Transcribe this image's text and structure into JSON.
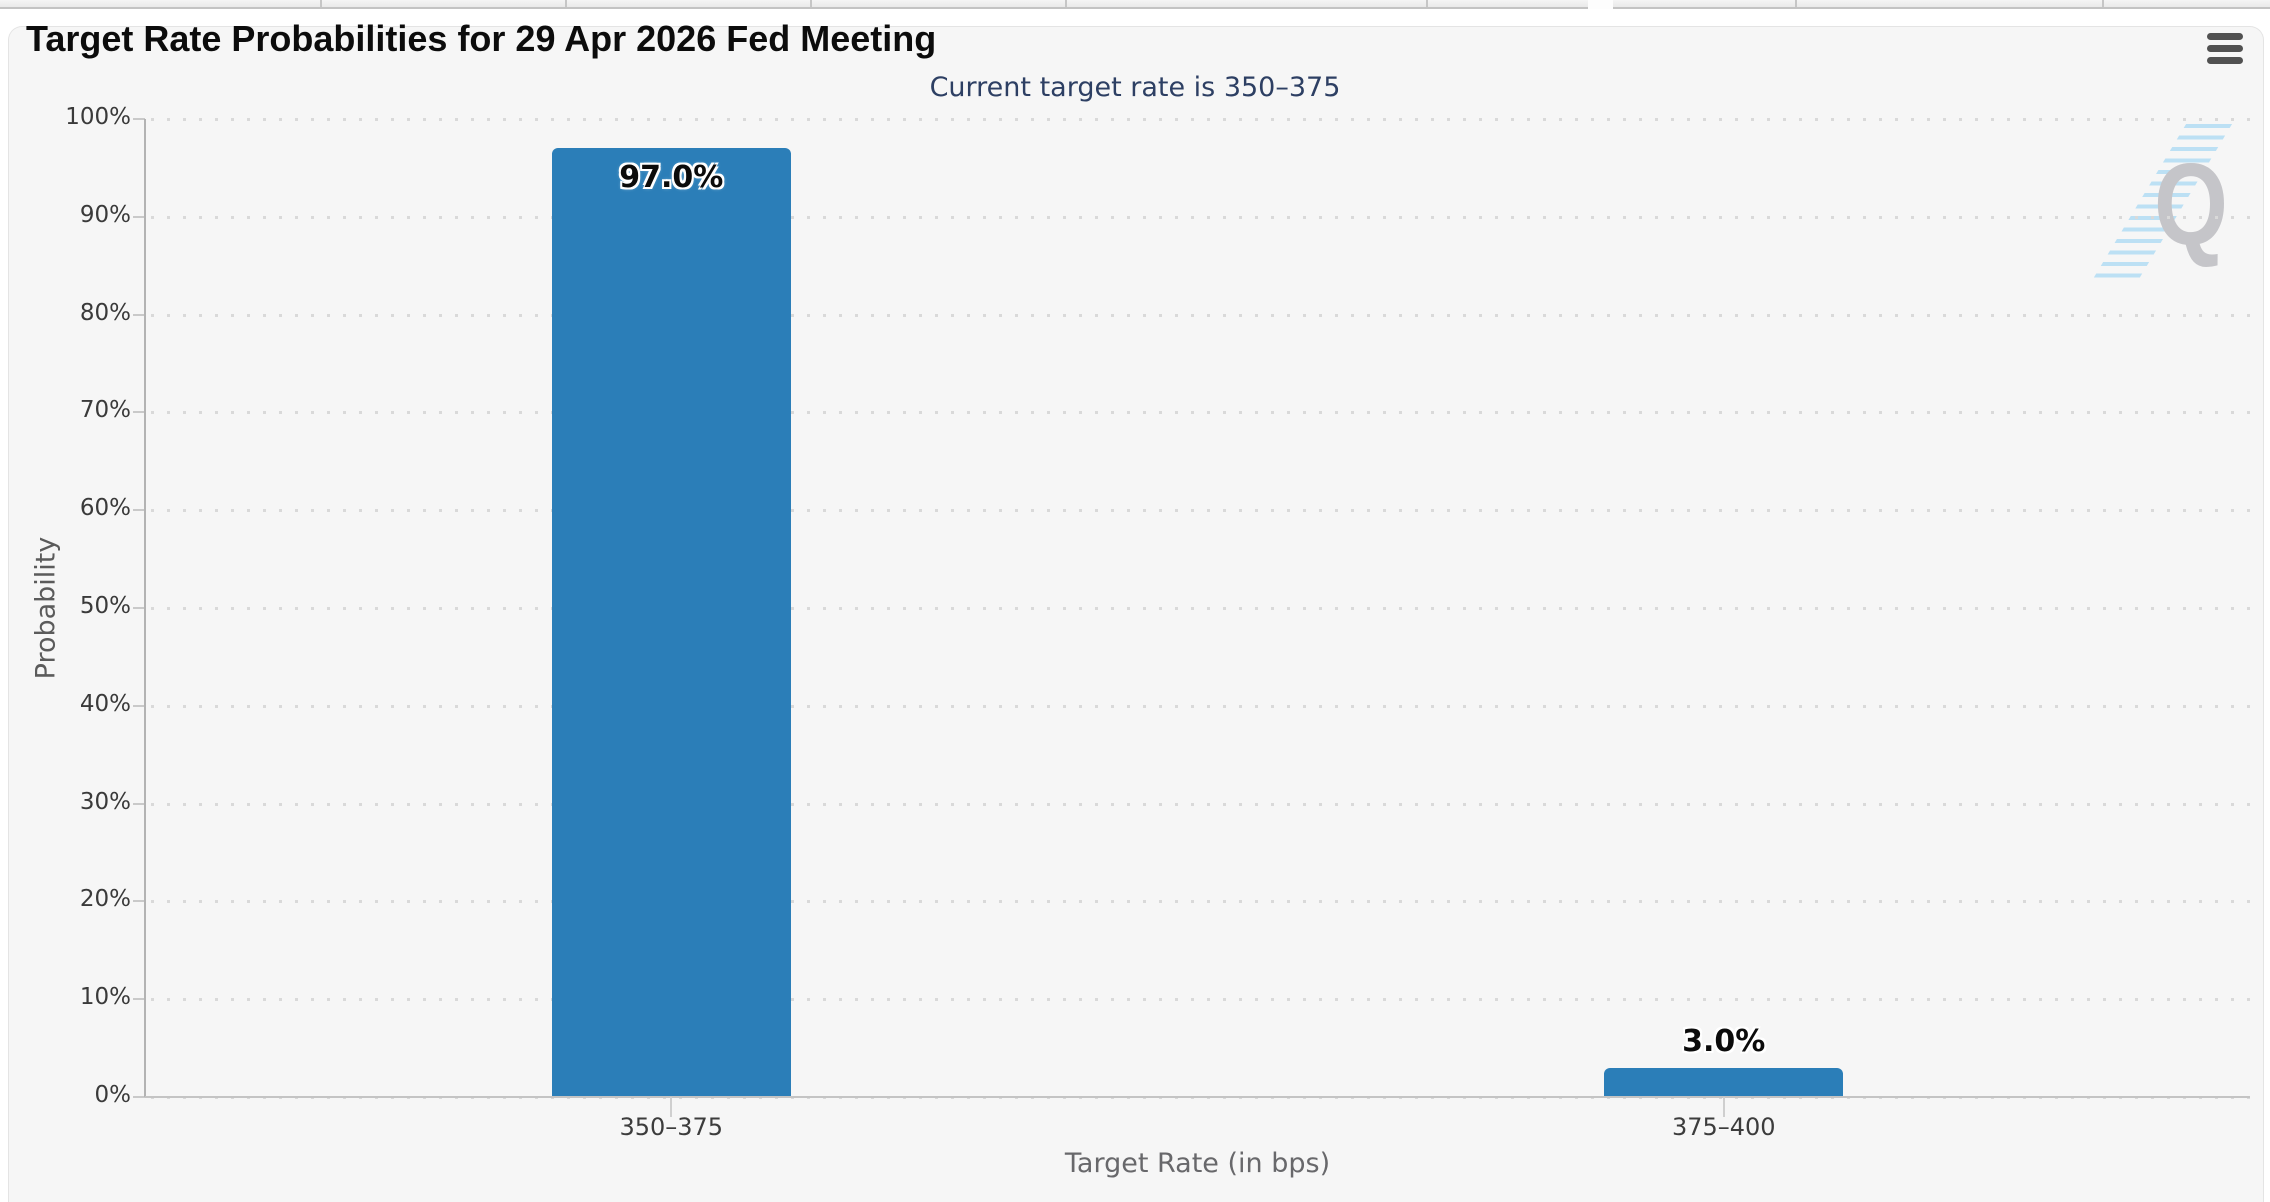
{
  "header": {
    "menu_icon": "hamburger-menu"
  },
  "watermark": {
    "letter": "Q",
    "description": "quikstrike-logo-watermark"
  },
  "chart_data": {
    "type": "bar",
    "title": "Target Rate Probabilities for 29 Apr 2026 Fed Meeting",
    "subtitle": "Current target rate is 350–375",
    "categories": [
      "350–375",
      "375–400"
    ],
    "values": [
      97.0,
      3.0
    ],
    "value_labels": [
      "97.0%",
      "3.0%"
    ],
    "xlabel": "Target Rate (in bps)",
    "ylabel": "Probability",
    "ylim": [
      0,
      100
    ],
    "yticks": [
      0,
      10,
      20,
      30,
      40,
      50,
      60,
      70,
      80,
      90,
      100
    ],
    "ytick_labels": [
      "0%",
      "10%",
      "20%",
      "30%",
      "40%",
      "50%",
      "60%",
      "70%",
      "80%",
      "90%",
      "100%"
    ],
    "grid": "dotted-horizontal",
    "legend": "none",
    "bar_color": "#2b7eb8",
    "subtitle_color": "#2d3f63"
  }
}
